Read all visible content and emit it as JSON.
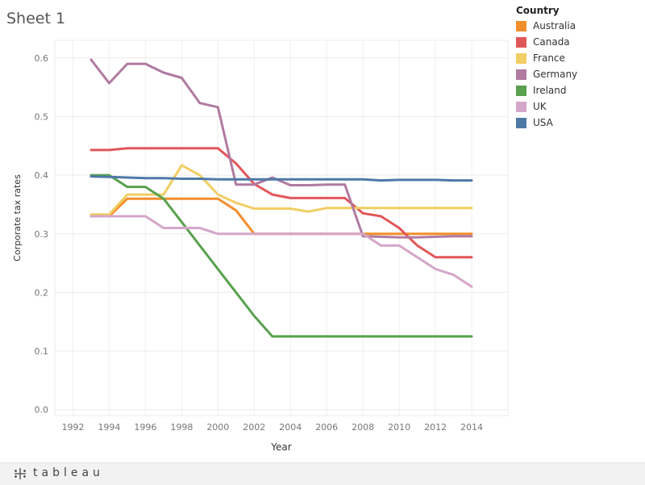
{
  "sheet_title": "Sheet 1",
  "footer": {
    "logo_text": "tableau"
  },
  "legend": {
    "title": "Country"
  },
  "chart_data": {
    "type": "line",
    "xlabel": "Year",
    "ylabel": "Corporate tax rates",
    "xlim": [
      1991,
      2016
    ],
    "ylim": [
      -0.01,
      0.63
    ],
    "x_ticks": [
      1992,
      1994,
      1996,
      1998,
      2000,
      2002,
      2004,
      2006,
      2008,
      2010,
      2012,
      2014
    ],
    "y_ticks": [
      0.0,
      0.1,
      0.2,
      0.3,
      0.4,
      0.5,
      0.6
    ],
    "y_tick_labels": [
      "0.0",
      "0.1",
      "0.2",
      "0.3",
      "0.4",
      "0.5",
      "0.6"
    ],
    "grid": true,
    "legend_position": "right",
    "x": [
      1993,
      1994,
      1995,
      1996,
      1997,
      1998,
      1999,
      2000,
      2001,
      2002,
      2003,
      2004,
      2005,
      2006,
      2007,
      2008,
      2009,
      2010,
      2011,
      2012,
      2013,
      2014
    ],
    "series": [
      {
        "name": "Australia",
        "color": "#f28e2b",
        "values": [
          0.33,
          0.33,
          0.36,
          0.36,
          0.36,
          0.36,
          0.36,
          0.36,
          0.34,
          0.3,
          0.3,
          0.3,
          0.3,
          0.3,
          0.3,
          0.3,
          0.3,
          0.3,
          0.3,
          0.3,
          0.3,
          0.3
        ]
      },
      {
        "name": "Canada",
        "color": "#e15759",
        "values": [
          0.443,
          0.443,
          0.446,
          0.446,
          0.446,
          0.446,
          0.446,
          0.446,
          0.42,
          0.385,
          0.367,
          0.361,
          0.361,
          0.361,
          0.361,
          0.335,
          0.33,
          0.31,
          0.28,
          0.26,
          0.26,
          0.26
        ]
      },
      {
        "name": "France",
        "color": "#f1ce63",
        "values": [
          0.333,
          0.333,
          0.367,
          0.367,
          0.367,
          0.417,
          0.4,
          0.367,
          0.353,
          0.343,
          0.343,
          0.343,
          0.338,
          0.344,
          0.344,
          0.344,
          0.344,
          0.344,
          0.344,
          0.344,
          0.344,
          0.344
        ]
      },
      {
        "name": "Germany",
        "color": "#b07aa1",
        "values": [
          0.597,
          0.557,
          0.59,
          0.59,
          0.575,
          0.566,
          0.523,
          0.516,
          0.384,
          0.384,
          0.396,
          0.383,
          0.383,
          0.384,
          0.384,
          0.296,
          0.295,
          0.294,
          0.294,
          0.295,
          0.296,
          0.296
        ]
      },
      {
        "name": "Ireland",
        "color": "#59a14f",
        "values": [
          0.4,
          0.4,
          0.38,
          0.38,
          0.36,
          0.32,
          0.28,
          0.24,
          0.2,
          0.16,
          0.125,
          0.125,
          0.125,
          0.125,
          0.125,
          0.125,
          0.125,
          0.125,
          0.125,
          0.125,
          0.125,
          0.125
        ]
      },
      {
        "name": "UK",
        "color": "#d4a6c8",
        "values": [
          0.33,
          0.33,
          0.33,
          0.33,
          0.31,
          0.31,
          0.31,
          0.3,
          0.3,
          0.3,
          0.3,
          0.3,
          0.3,
          0.3,
          0.3,
          0.3,
          0.28,
          0.28,
          0.26,
          0.24,
          0.23,
          0.21
        ]
      },
      {
        "name": "USA",
        "color": "#4e79a7",
        "values": [
          0.398,
          0.397,
          0.396,
          0.395,
          0.395,
          0.394,
          0.394,
          0.393,
          0.393,
          0.393,
          0.393,
          0.393,
          0.393,
          0.393,
          0.393,
          0.393,
          0.391,
          0.392,
          0.392,
          0.392,
          0.391,
          0.391
        ]
      }
    ]
  }
}
